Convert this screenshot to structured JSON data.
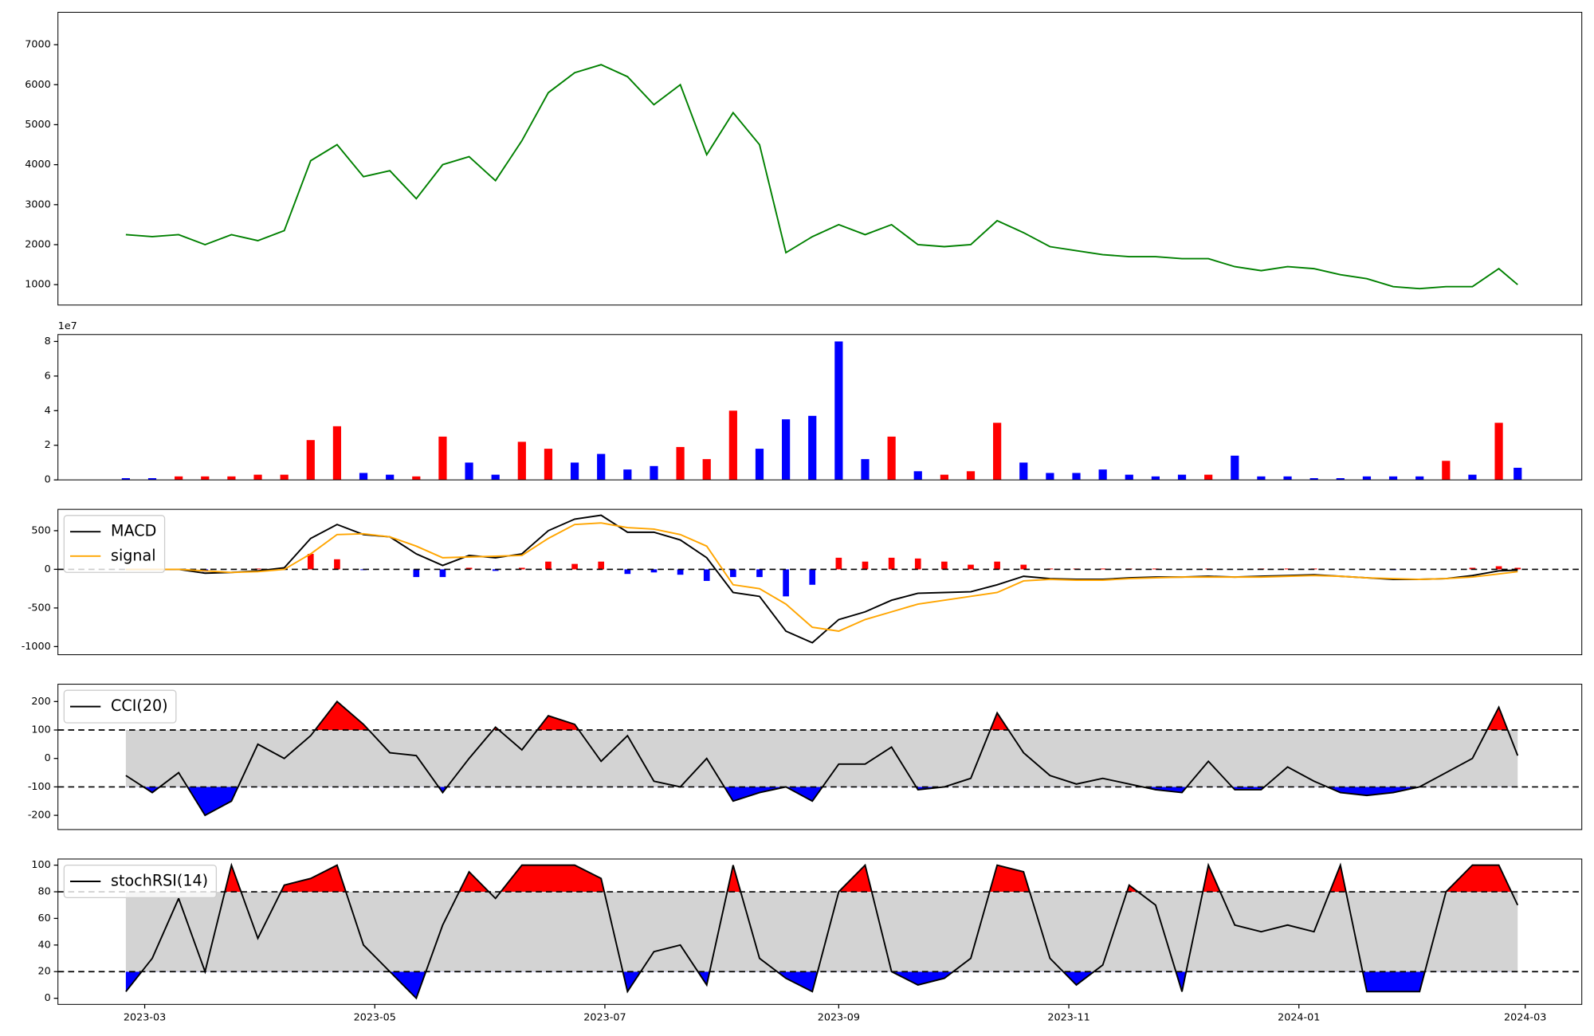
{
  "chart_data": [
    {
      "type": "line",
      "color": "green",
      "x": [
        "2023-02-24",
        "2023-03-03",
        "2023-03-10",
        "2023-03-17",
        "2023-03-24",
        "2023-03-31",
        "2023-04-07",
        "2023-04-14",
        "2023-04-21",
        "2023-04-28",
        "2023-05-05",
        "2023-05-12",
        "2023-05-19",
        "2023-05-26",
        "2023-06-02",
        "2023-06-09",
        "2023-06-16",
        "2023-06-23",
        "2023-06-30",
        "2023-07-07",
        "2023-07-14",
        "2023-07-21",
        "2023-07-28",
        "2023-08-04",
        "2023-08-11",
        "2023-08-18",
        "2023-08-25",
        "2023-09-01",
        "2023-09-08",
        "2023-09-15",
        "2023-09-22",
        "2023-09-29",
        "2023-10-06",
        "2023-10-13",
        "2023-10-20",
        "2023-10-27",
        "2023-11-03",
        "2023-11-10",
        "2023-11-17",
        "2023-11-24",
        "2023-12-01",
        "2023-12-08",
        "2023-12-15",
        "2023-12-22",
        "2023-12-29",
        "2024-01-05",
        "2024-01-12",
        "2024-01-19",
        "2024-01-26",
        "2024-02-02",
        "2024-02-09",
        "2024-02-16",
        "2024-02-23",
        "2024-02-28"
      ],
      "values": [
        2250,
        2200,
        2250,
        2000,
        2250,
        2100,
        2350,
        4100,
        4500,
        3700,
        3850,
        3150,
        4000,
        4200,
        3600,
        4600,
        5800,
        6300,
        6500,
        6200,
        5500,
        6000,
        4250,
        5300,
        4500,
        1800,
        2200,
        2500,
        2250,
        2500,
        2000,
        1950,
        2000,
        2600,
        2300,
        1950,
        1850,
        1750,
        1700,
        1700,
        1650,
        1650,
        1450,
        1350,
        1450,
        1400,
        1250,
        1150,
        950,
        900,
        950,
        950,
        1400,
        1000
      ],
      "xlim": [
        "2023-02-06",
        "2024-03-16"
      ],
      "ylim": [
        490,
        7810
      ],
      "yticks": [
        1000,
        2000,
        3000,
        4000,
        5000,
        6000,
        7000
      ]
    },
    {
      "type": "bar",
      "x": [
        "2023-02-24",
        "2023-03-03",
        "2023-03-10",
        "2023-03-17",
        "2023-03-24",
        "2023-03-31",
        "2023-04-07",
        "2023-04-14",
        "2023-04-21",
        "2023-04-28",
        "2023-05-05",
        "2023-05-12",
        "2023-05-19",
        "2023-05-26",
        "2023-06-02",
        "2023-06-09",
        "2023-06-16",
        "2023-06-23",
        "2023-06-30",
        "2023-07-07",
        "2023-07-14",
        "2023-07-21",
        "2023-07-28",
        "2023-08-04",
        "2023-08-11",
        "2023-08-18",
        "2023-08-25",
        "2023-09-01",
        "2023-09-08",
        "2023-09-15",
        "2023-09-22",
        "2023-09-29",
        "2023-10-06",
        "2023-10-13",
        "2023-10-20",
        "2023-10-27",
        "2023-11-03",
        "2023-11-10",
        "2023-11-17",
        "2023-11-24",
        "2023-12-01",
        "2023-12-08",
        "2023-12-15",
        "2023-12-22",
        "2023-12-29",
        "2024-01-05",
        "2024-01-12",
        "2024-01-19",
        "2024-01-26",
        "2024-02-02",
        "2024-02-09",
        "2024-02-16",
        "2024-02-23",
        "2024-02-28"
      ],
      "values": [
        1000000,
        1000000,
        2000000,
        2000000,
        2000000,
        3000000,
        3000000,
        23000000,
        31000000,
        4000000,
        3000000,
        2000000,
        25000000,
        10000000,
        3000000,
        22000000,
        18000000,
        10000000,
        15000000,
        6000000,
        8000000,
        19000000,
        12000000,
        40000000,
        18000000,
        35000000,
        37000000,
        80000000,
        12000000,
        25000000,
        5000000,
        3000000,
        5000000,
        33000000,
        10000000,
        4000000,
        4000000,
        6000000,
        3000000,
        2000000,
        3000000,
        3000000,
        14000000,
        2000000,
        2000000,
        1000000,
        1000000,
        2000000,
        2000000,
        2000000,
        11000000,
        3000000,
        33000000,
        7000000
      ],
      "colors": [
        "blue",
        "blue",
        "red",
        "red",
        "red",
        "red",
        "red",
        "red",
        "red",
        "blue",
        "blue",
        "red",
        "red",
        "blue",
        "blue",
        "red",
        "red",
        "blue",
        "blue",
        "blue",
        "blue",
        "red",
        "red",
        "red",
        "blue",
        "blue",
        "blue",
        "blue",
        "blue",
        "red",
        "blue",
        "red",
        "red",
        "red",
        "blue",
        "blue",
        "blue",
        "blue",
        "blue",
        "blue",
        "blue",
        "red",
        "blue",
        "blue",
        "blue",
        "blue",
        "blue",
        "blue",
        "blue",
        "blue",
        "red",
        "blue",
        "red",
        "blue"
      ],
      "offset_label": "1e7",
      "xlim": [
        "2023-02-06",
        "2024-03-16"
      ],
      "ylim": [
        0,
        84000000
      ],
      "yticks": [
        0,
        {
          "value": 20000000,
          "label": "2"
        },
        {
          "value": 40000000,
          "label": "4"
        },
        {
          "value": 60000000,
          "label": "6"
        },
        {
          "value": 80000000,
          "label": "8"
        }
      ]
    },
    {
      "type": "macd",
      "x": [
        "2023-02-24",
        "2023-03-03",
        "2023-03-10",
        "2023-03-17",
        "2023-03-24",
        "2023-03-31",
        "2023-04-07",
        "2023-04-14",
        "2023-04-21",
        "2023-04-28",
        "2023-05-05",
        "2023-05-12",
        "2023-05-19",
        "2023-05-26",
        "2023-06-02",
        "2023-06-09",
        "2023-06-16",
        "2023-06-23",
        "2023-06-30",
        "2023-07-07",
        "2023-07-14",
        "2023-07-21",
        "2023-07-28",
        "2023-08-04",
        "2023-08-11",
        "2023-08-18",
        "2023-08-25",
        "2023-09-01",
        "2023-09-08",
        "2023-09-15",
        "2023-09-22",
        "2023-09-29",
        "2023-10-06",
        "2023-10-13",
        "2023-10-20",
        "2023-10-27",
        "2023-11-03",
        "2023-11-10",
        "2023-11-17",
        "2023-11-24",
        "2023-12-01",
        "2023-12-08",
        "2023-12-15",
        "2023-12-22",
        "2023-12-29",
        "2024-01-05",
        "2024-01-12",
        "2024-01-19",
        "2024-01-26",
        "2024-02-02",
        "2024-02-09",
        "2024-02-16",
        "2024-02-23",
        "2024-02-28"
      ],
      "series": [
        {
          "name": "MACD",
          "color": "black",
          "values": [
            0,
            0,
            0,
            -50,
            -40,
            -20,
            20,
            400,
            580,
            450,
            420,
            200,
            50,
            180,
            150,
            200,
            500,
            650,
            700,
            480,
            480,
            380,
            150,
            -300,
            -350,
            -800,
            -950,
            -650,
            -550,
            -400,
            -310,
            -300,
            -290,
            -200,
            -90,
            -120,
            -130,
            -130,
            -110,
            -100,
            -100,
            -90,
            -100,
            -90,
            -80,
            -70,
            -90,
            -110,
            -130,
            -130,
            -120,
            -80,
            -20,
            -10
          ]
        },
        {
          "name": "signal",
          "color": "orange",
          "values": [
            0,
            0,
            0,
            -20,
            -40,
            -30,
            0,
            200,
            450,
            460,
            420,
            300,
            150,
            160,
            170,
            180,
            400,
            580,
            600,
            540,
            520,
            450,
            300,
            -200,
            -250,
            -450,
            -750,
            -800,
            -650,
            -550,
            -450,
            -400,
            -350,
            -300,
            -150,
            -130,
            -140,
            -140,
            -120,
            -110,
            -100,
            -100,
            -100,
            -100,
            -90,
            -80,
            -90,
            -110,
            -120,
            -130,
            -120,
            -100,
            -60,
            -30
          ]
        }
      ],
      "histogram": {
        "positive_color": "red",
        "negative_color": "blue",
        "values": [
          0,
          0,
          0,
          -30,
          0,
          10,
          20,
          200,
          130,
          -10,
          0,
          -100,
          -100,
          20,
          -20,
          20,
          100,
          70,
          100,
          -60,
          -40,
          -70,
          -150,
          -100,
          -100,
          -350,
          -200,
          150,
          100,
          150,
          140,
          100,
          60,
          100,
          60,
          10,
          10,
          10,
          10,
          10,
          0,
          10,
          0,
          10,
          10,
          10,
          0,
          0,
          -10,
          0,
          0,
          20,
          40,
          20
        ]
      },
      "hlines": [
        0
      ],
      "legend": "upper left",
      "xlim": [
        "2023-02-06",
        "2024-03-16"
      ],
      "ylim": [
        -1105,
        776
      ],
      "yticks": [
        -1000,
        -500,
        0,
        500
      ]
    },
    {
      "type": "oscillator",
      "x": [
        "2023-02-24",
        "2023-03-03",
        "2023-03-10",
        "2023-03-17",
        "2023-03-24",
        "2023-03-31",
        "2023-04-07",
        "2023-04-14",
        "2023-04-21",
        "2023-04-28",
        "2023-05-05",
        "2023-05-12",
        "2023-05-19",
        "2023-05-26",
        "2023-06-02",
        "2023-06-09",
        "2023-06-16",
        "2023-06-23",
        "2023-06-30",
        "2023-07-07",
        "2023-07-14",
        "2023-07-21",
        "2023-07-28",
        "2023-08-04",
        "2023-08-11",
        "2023-08-18",
        "2023-08-25",
        "2023-09-01",
        "2023-09-08",
        "2023-09-15",
        "2023-09-22",
        "2023-09-29",
        "2023-10-06",
        "2023-10-13",
        "2023-10-20",
        "2023-10-27",
        "2023-11-03",
        "2023-11-10",
        "2023-11-17",
        "2023-11-24",
        "2023-12-01",
        "2023-12-08",
        "2023-12-15",
        "2023-12-22",
        "2023-12-29",
        "2024-01-05",
        "2024-01-12",
        "2024-01-19",
        "2024-01-26",
        "2024-02-02",
        "2024-02-09",
        "2024-02-16",
        "2024-02-23",
        "2024-02-28"
      ],
      "series": [
        {
          "name": "CCI(20)",
          "color": "black",
          "values": [
            -60,
            -120,
            -50,
            -200,
            -150,
            50,
            0,
            80,
            200,
            120,
            20,
            10,
            -120,
            0,
            110,
            30,
            150,
            120,
            -10,
            80,
            -80,
            -100,
            0,
            -150,
            -120,
            -100,
            -150,
            -20,
            -20,
            40,
            -110,
            -100,
            -70,
            160,
            20,
            -60,
            -90,
            -70,
            -90,
            -110,
            -120,
            -10,
            -110,
            -110,
            -30,
            -80,
            -120,
            -130,
            -120,
            -100,
            -50,
            0,
            180,
            10
          ]
        }
      ],
      "thresholds": [
        -100,
        100
      ],
      "band_color": "lightgray",
      "upper_color": "red",
      "lower_color": "blue",
      "legend": "upper left",
      "xlim": [
        "2023-02-06",
        "2024-03-16"
      ],
      "ylim": [
        -250,
        261
      ],
      "yticks": [
        -200,
        -100,
        0,
        100,
        200
      ]
    },
    {
      "type": "oscillator",
      "x": [
        "2023-02-24",
        "2023-03-03",
        "2023-03-10",
        "2023-03-17",
        "2023-03-24",
        "2023-03-31",
        "2023-04-07",
        "2023-04-14",
        "2023-04-21",
        "2023-04-28",
        "2023-05-05",
        "2023-05-12",
        "2023-05-19",
        "2023-05-26",
        "2023-06-02",
        "2023-06-09",
        "2023-06-16",
        "2023-06-23",
        "2023-06-30",
        "2023-07-07",
        "2023-07-14",
        "2023-07-21",
        "2023-07-28",
        "2023-08-04",
        "2023-08-11",
        "2023-08-18",
        "2023-08-25",
        "2023-09-01",
        "2023-09-08",
        "2023-09-15",
        "2023-09-22",
        "2023-09-29",
        "2023-10-06",
        "2023-10-13",
        "2023-10-20",
        "2023-10-27",
        "2023-11-03",
        "2023-11-10",
        "2023-11-17",
        "2023-11-24",
        "2023-12-01",
        "2023-12-08",
        "2023-12-15",
        "2023-12-22",
        "2023-12-29",
        "2024-01-05",
        "2024-01-12",
        "2024-01-19",
        "2024-01-26",
        "2024-02-02",
        "2024-02-09",
        "2024-02-16",
        "2024-02-23",
        "2024-02-28"
      ],
      "series": [
        {
          "name": "stochRSI(14)",
          "color": "black",
          "values": [
            5,
            30,
            75,
            20,
            100,
            45,
            85,
            90,
            100,
            40,
            20,
            0,
            55,
            95,
            75,
            100,
            100,
            100,
            90,
            5,
            35,
            40,
            10,
            100,
            30,
            15,
            5,
            80,
            100,
            20,
            10,
            15,
            30,
            100,
            95,
            30,
            10,
            25,
            85,
            70,
            5,
            100,
            55,
            50,
            55,
            50,
            100,
            5,
            5,
            5,
            80,
            100,
            100,
            70
          ]
        }
      ],
      "thresholds": [
        20,
        80
      ],
      "band_color": "lightgray",
      "upper_color": "red",
      "lower_color": "blue",
      "legend": "upper left",
      "xlim": [
        "2023-02-06",
        "2024-03-16"
      ],
      "ylim": [
        -4.6,
        104.6
      ],
      "yticks": [
        0,
        20,
        40,
        60,
        80,
        100
      ],
      "xticks": [
        "2023-03",
        "2023-05",
        "2023-07",
        "2023-09",
        "2023-11",
        "2024-01",
        "2024-03"
      ]
    }
  ]
}
